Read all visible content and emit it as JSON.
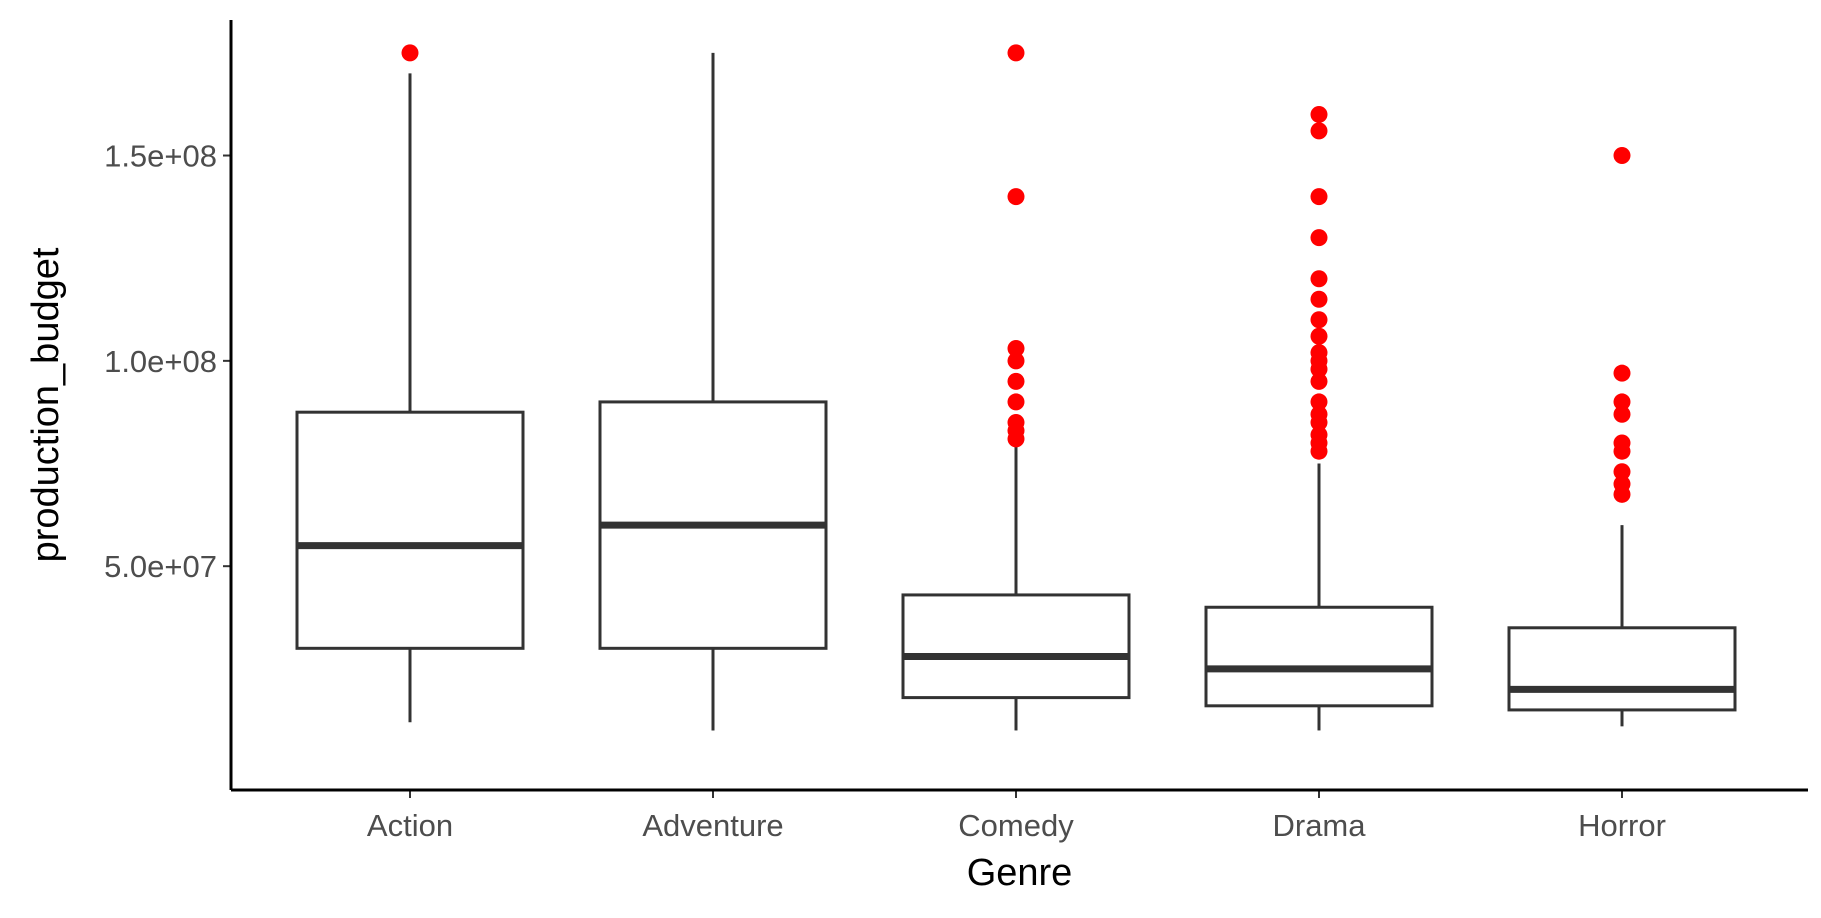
{
  "chart_data": {
    "type": "box",
    "title": "",
    "xlabel": "Genre",
    "ylabel": "production_budget",
    "ylim": [
      -4500000,
      183000000
    ],
    "y_ticks": [
      50000000,
      100000000,
      150000000
    ],
    "y_tick_labels": [
      "5.0e+07",
      "1.0e+08",
      "1.5e+08"
    ],
    "grid": false,
    "colors": {
      "box": "#333333",
      "outlier": "#ff0000",
      "axis": "#000000",
      "tick_label": "#4d4d4d"
    },
    "categories": [
      "Action",
      "Adventure",
      "Comedy",
      "Drama",
      "Horror"
    ],
    "boxes": [
      {
        "category": "Action",
        "whisker_low": 12000000,
        "q1": 30000000,
        "median": 55000000,
        "q3": 87500000,
        "whisker_high": 170000000,
        "outliers": [
          175000000
        ]
      },
      {
        "category": "Adventure",
        "whisker_low": 10000000,
        "q1": 30000000,
        "median": 60000000,
        "q3": 90000000,
        "whisker_high": 175000000,
        "outliers": []
      },
      {
        "category": "Comedy",
        "whisker_low": 10000000,
        "q1": 18000000,
        "median": 28000000,
        "q3": 43000000,
        "whisker_high": 80000000,
        "outliers": [
          175000000,
          140000000,
          103000000,
          100000000,
          95000000,
          90000000,
          85000000,
          83000000,
          81000000
        ]
      },
      {
        "category": "Drama",
        "whisker_low": 10000000,
        "q1": 16000000,
        "median": 25000000,
        "q3": 40000000,
        "whisker_high": 75000000,
        "outliers": [
          160000000,
          156000000,
          140000000,
          130000000,
          120000000,
          115000000,
          110000000,
          106000000,
          102000000,
          100000000,
          98000000,
          95000000,
          90000000,
          87000000,
          85000000,
          82000000,
          80000000,
          78000000
        ]
      },
      {
        "category": "Horror",
        "whisker_low": 11000000,
        "q1": 15000000,
        "median": 20000000,
        "q3": 35000000,
        "whisker_high": 60000000,
        "outliers": [
          150000000,
          97000000,
          90000000,
          87000000,
          80000000,
          78000000,
          73000000,
          70000000,
          67500000
        ]
      }
    ]
  }
}
